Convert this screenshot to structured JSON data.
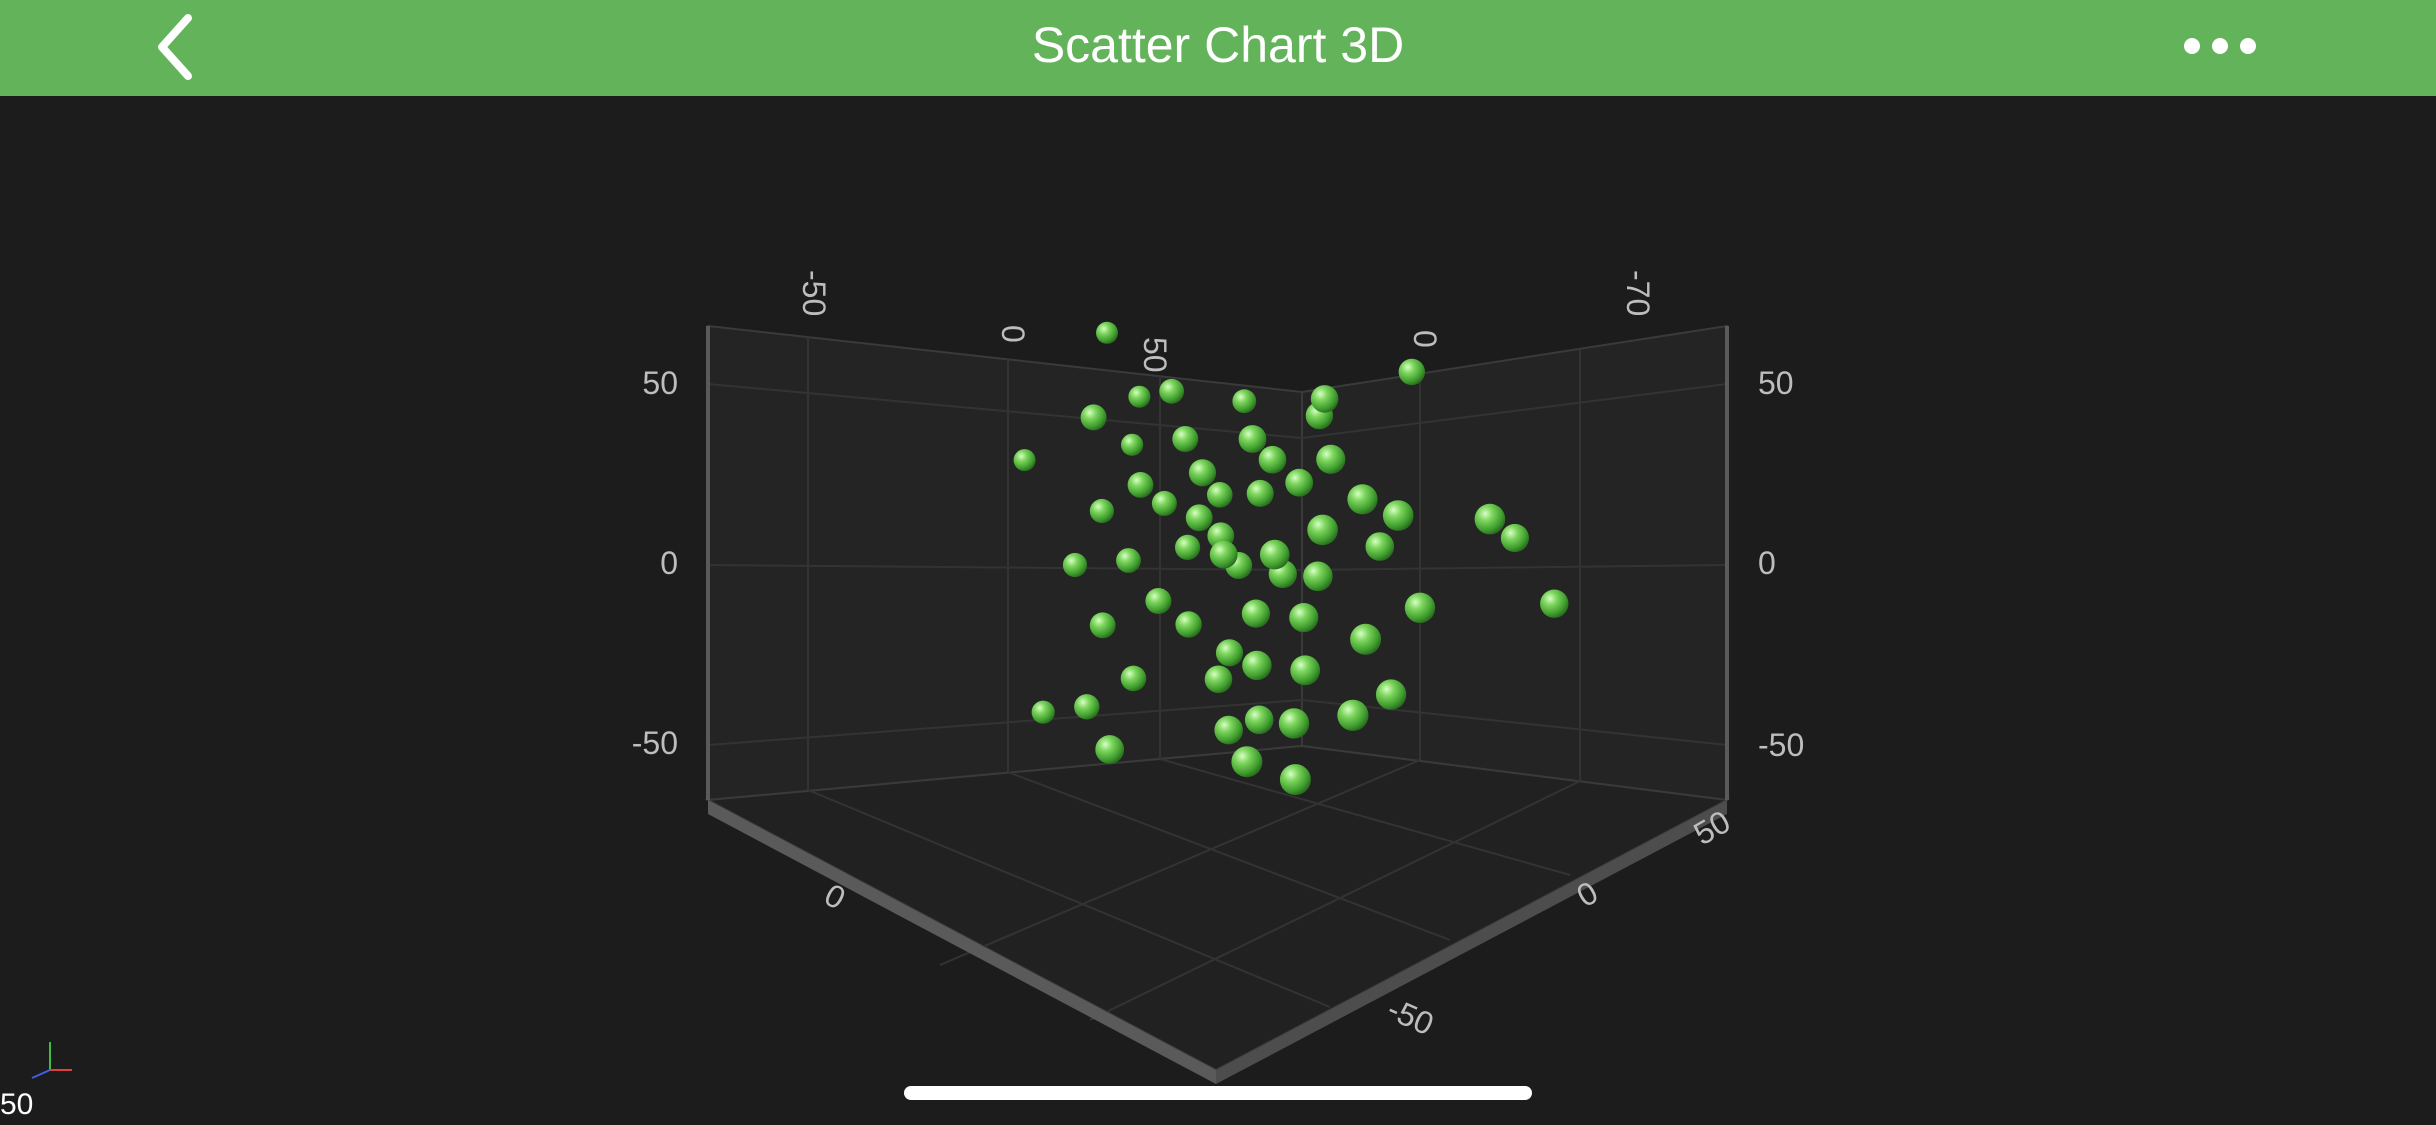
{
  "app": {
    "title": "Scatter Chart 3D",
    "back_icon": "chevron-left-icon",
    "more_icon": "ellipsis-icon",
    "fps": "50",
    "colors": {
      "navbar": "#63b35a",
      "background": "#1c1c1c",
      "marker": "#5cc141",
      "tick_label": "#bdbdbd"
    }
  },
  "chart_data": {
    "type": "scatter",
    "dimensions": 3,
    "title": "",
    "xlabel": "",
    "ylabel": "",
    "zlabel": "",
    "xlim": [
      -70,
      70
    ],
    "ylim": [
      -60,
      60
    ],
    "zlim": [
      -70,
      70
    ],
    "grid": true,
    "marker": "sphere",
    "x_tick_labels": [
      "-50",
      "0",
      "50"
    ],
    "y_tick_labels": [
      "50",
      "0",
      "-50"
    ],
    "z_tick_labels": [
      "50",
      "0",
      "-50",
      "-70"
    ],
    "points": [
      {
        "x": -41,
        "y": 57,
        "z": -19,
        "s": 1
      },
      {
        "x": 29,
        "y": 51,
        "z": -50,
        "s": 1
      },
      {
        "x": -44,
        "y": 36,
        "z": -42,
        "s": 1
      },
      {
        "x": -58,
        "y": 21,
        "z": -7,
        "s": 1
      },
      {
        "x": -31,
        "y": 38,
        "z": 7,
        "s": 1
      },
      {
        "x": -35,
        "y": 10,
        "z": -5,
        "s": 1
      },
      {
        "x": -21,
        "y": 13,
        "z": -12,
        "s": 1
      },
      {
        "x": -10,
        "y": 40,
        "z": -34,
        "s": 1
      },
      {
        "x": -5,
        "y": 6,
        "z": -12,
        "s": 1
      },
      {
        "x": 17,
        "y": 45,
        "z": -26,
        "s": 1
      },
      {
        "x": 13,
        "y": 22,
        "z": -20,
        "s": 1
      },
      {
        "x": -9,
        "y": 16,
        "z": -19,
        "s": 1
      },
      {
        "x": 32,
        "y": 20,
        "z": -18,
        "s": 1
      },
      {
        "x": 40,
        "y": 16,
        "z": -22,
        "s": 1
      },
      {
        "x": 30,
        "y": 5,
        "z": -31,
        "s": 1
      },
      {
        "x": -1,
        "y": -2,
        "z": -14,
        "s": 1
      },
      {
        "x": -19,
        "y": -13,
        "z": -5,
        "s": 1
      },
      {
        "x": 20,
        "y": -28,
        "z": -10,
        "s": 1
      },
      {
        "x": -49,
        "y": -47,
        "z": 0,
        "s": 1
      },
      {
        "x": -34,
        "y": -43,
        "z": 5,
        "s": 1
      },
      {
        "x": -25,
        "y": -35,
        "z": -3,
        "s": 1
      },
      {
        "x": -3,
        "y": -33,
        "z": -7,
        "s": 1
      },
      {
        "x": 10,
        "y": -27,
        "z": -3,
        "s": 1
      },
      {
        "x": 38,
        "y": -34,
        "z": -22,
        "s": 1
      },
      {
        "x": 57,
        "y": 15,
        "z": -39,
        "s": 1
      },
      {
        "x": 54,
        "y": 7,
        "z": -58,
        "s": 1
      },
      {
        "x": 62,
        "y": -11,
        "z": -64,
        "s": 1
      },
      {
        "x": 22,
        "y": -57,
        "z": -1,
        "s": 1
      },
      {
        "x": 8,
        "y": -43,
        "z": -8,
        "s": 1
      },
      {
        "x": 33,
        "y": -39,
        "z": -11,
        "s": 1
      },
      {
        "x": 20,
        "y": -42,
        "z": -4,
        "s": 1
      },
      {
        "x": -19,
        "y": -51,
        "z": 21,
        "s": 1
      },
      {
        "x": 13,
        "y": -52,
        "z": 8,
        "s": 1
      },
      {
        "x": 2,
        "y": -46,
        "z": -3,
        "s": 1
      },
      {
        "x": -1,
        "y": 2,
        "z": -6,
        "s": 1
      },
      {
        "x": 14,
        "y": 4,
        "z": -5,
        "s": 1
      },
      {
        "x": -9,
        "y": 11,
        "z": -8,
        "s": 1
      },
      {
        "x": 22,
        "y": -2,
        "z": -13,
        "s": 1
      },
      {
        "x": 6,
        "y": -14,
        "z": -10,
        "s": 1
      },
      {
        "x": -23,
        "y": 19,
        "z": -3,
        "s": 1
      },
      {
        "x": -36,
        "y": 26,
        "z": -23,
        "s": 1
      },
      {
        "x": -7,
        "y": 24,
        "z": -6,
        "s": 1
      },
      {
        "x": 7,
        "y": 28,
        "z": -17,
        "s": 1
      },
      {
        "x": 26,
        "y": 12,
        "z": -8,
        "s": 1
      },
      {
        "x": -28,
        "y": -3,
        "z": -6,
        "s": 1
      },
      {
        "x": -12,
        "y": -19,
        "z": -8,
        "s": 1
      },
      {
        "x": 18,
        "y": -14,
        "z": -13,
        "s": 1
      },
      {
        "x": -14,
        "y": 32,
        "z": -10,
        "s": 1
      },
      {
        "x": 4,
        "y": 34,
        "z": -12,
        "s": 1
      },
      {
        "x": 23,
        "y": 30,
        "z": -18,
        "s": 1
      },
      {
        "x": -2,
        "y": -26,
        "z": -11,
        "s": 1
      },
      {
        "x": 11,
        "y": -3,
        "z": -15,
        "s": 1
      },
      {
        "x": -16,
        "y": 1,
        "z": -15,
        "s": 1
      },
      {
        "x": 3,
        "y": 18,
        "z": -18,
        "s": 1
      },
      {
        "x": 35,
        "y": -18,
        "z": -14,
        "s": 1
      },
      {
        "x": -30,
        "y": -20,
        "z": 4,
        "s": 1
      },
      {
        "x": -40,
        "y": -5,
        "z": 0,
        "s": 1
      },
      {
        "x": 43,
        "y": -10,
        "z": -28,
        "s": 1
      },
      {
        "x": 15,
        "y": 40,
        "z": -27,
        "s": 1
      },
      {
        "x": -20,
        "y": 44,
        "z": -14,
        "s": 1
      }
    ]
  }
}
